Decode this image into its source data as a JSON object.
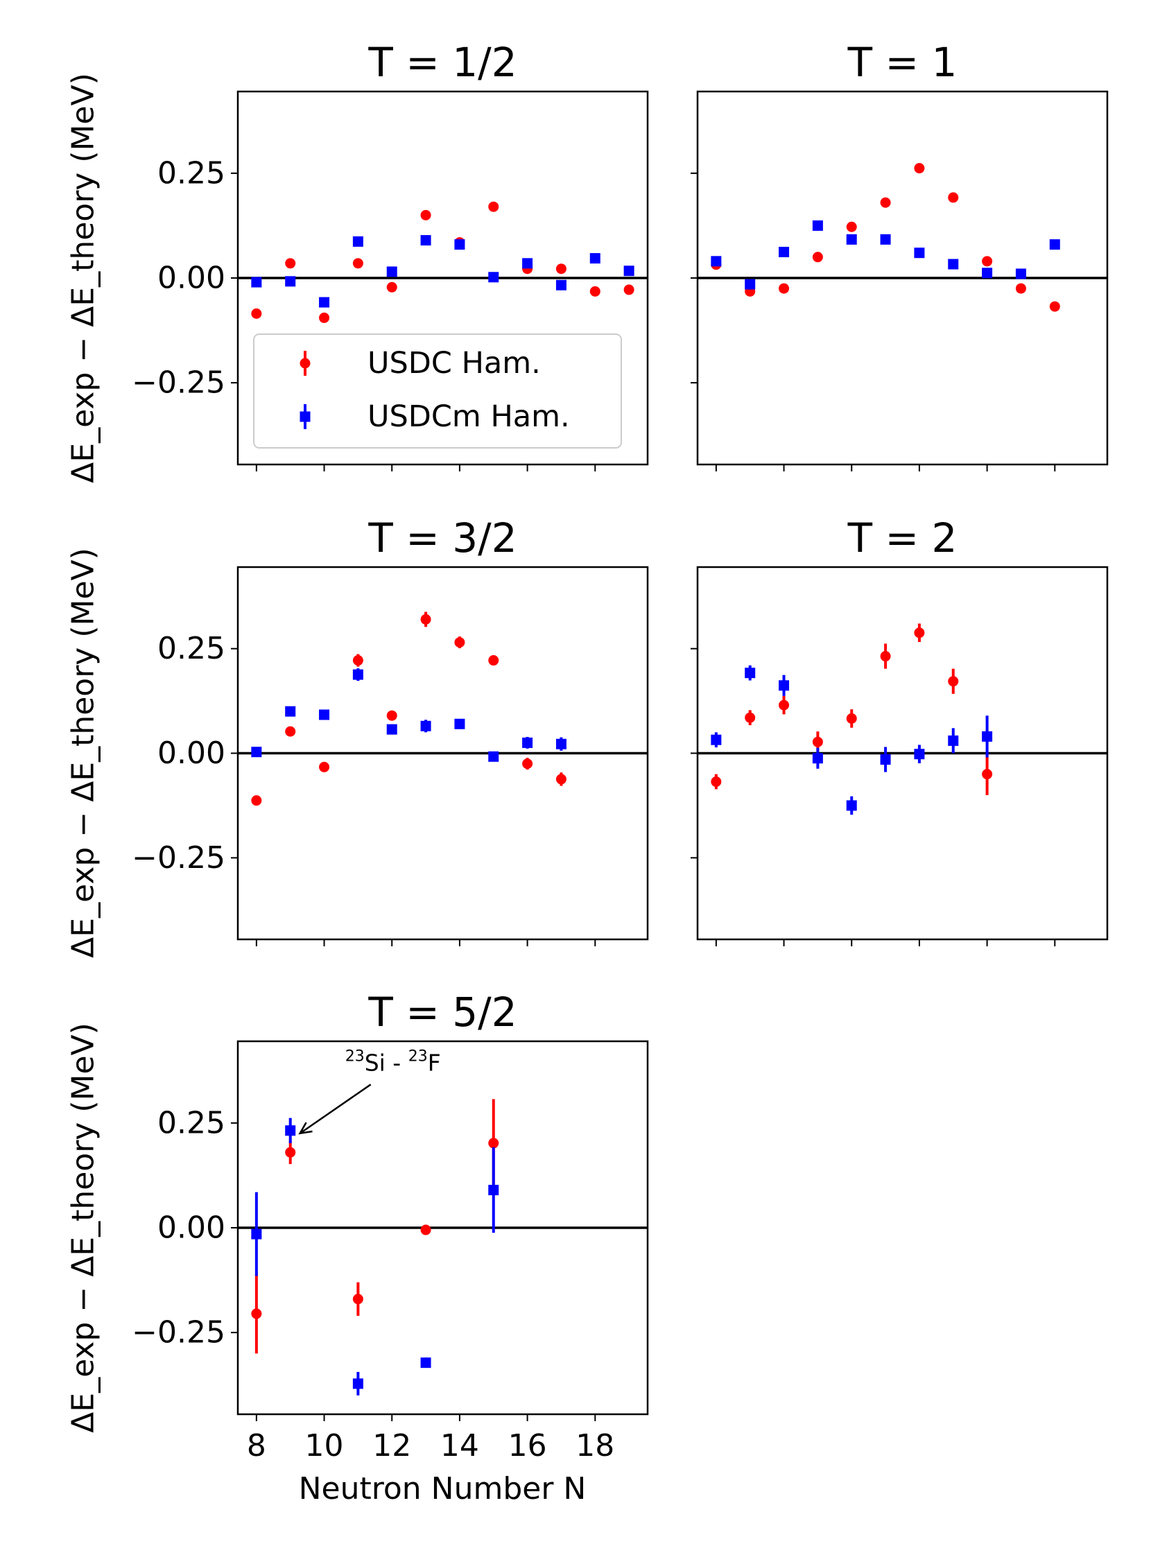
{
  "figure": {
    "ylabel": "ΔE_exp − ΔE_theory (MeV)",
    "xlabel": "Neutron Number N",
    "colors": {
      "usdc": "#ff0000",
      "usdcm": "#0000ff",
      "zero_line": "#000000"
    }
  },
  "chart_data": [
    {
      "type": "scatter",
      "title": "T = 1/2",
      "xlim": [
        7.45,
        19.55
      ],
      "ylim": [
        -0.445,
        0.445
      ],
      "yticks": [
        "0.25",
        "0.00",
        "−0.25"
      ],
      "xticks": [
        "8",
        "10",
        "12",
        "14",
        "16",
        "18"
      ],
      "show_x_ticklabels": false,
      "show_y_ticklabels": true,
      "legend": {
        "placement": "lower-left",
        "entries": [
          "USDC Ham.",
          "USDCm Ham."
        ]
      },
      "series": [
        {
          "name": "USDC Ham.",
          "marker": "circle",
          "color": "#ff0000",
          "x": [
            8,
            9,
            10,
            11,
            12,
            13,
            14,
            15,
            16,
            17,
            18,
            19
          ],
          "y": [
            -0.085,
            0.035,
            -0.095,
            0.035,
            -0.022,
            0.15,
            0.085,
            0.17,
            0.022,
            0.022,
            -0.032,
            -0.028
          ],
          "err": [
            0.004,
            0.004,
            0.004,
            0.004,
            0.004,
            0.004,
            0.004,
            0.004,
            0.004,
            0.004,
            0.004,
            0.004
          ]
        },
        {
          "name": "USDCm Ham.",
          "marker": "square",
          "color": "#0000ff",
          "x": [
            8,
            9,
            10,
            11,
            12,
            13,
            14,
            15,
            16,
            17,
            18,
            19
          ],
          "y": [
            -0.01,
            -0.008,
            -0.058,
            0.087,
            0.015,
            0.09,
            0.08,
            0.002,
            0.035,
            -0.017,
            0.047,
            0.017
          ],
          "err": [
            0.004,
            0.004,
            0.004,
            0.004,
            0.004,
            0.004,
            0.004,
            0.004,
            0.004,
            0.004,
            0.004,
            0.004
          ]
        }
      ]
    },
    {
      "type": "scatter",
      "title": "T = 1",
      "xlim": [
        7.45,
        19.55
      ],
      "ylim": [
        -0.445,
        0.445
      ],
      "yticks": [
        "0.25",
        "0.00",
        "−0.25"
      ],
      "xticks": [
        "8",
        "10",
        "12",
        "14",
        "16",
        "18"
      ],
      "show_x_ticklabels": false,
      "show_y_ticklabels": false,
      "series": [
        {
          "name": "USDC Ham.",
          "marker": "circle",
          "color": "#ff0000",
          "x": [
            8,
            9,
            10,
            11,
            12,
            13,
            14,
            15,
            16,
            17,
            18
          ],
          "y": [
            0.032,
            -0.032,
            -0.025,
            0.05,
            0.122,
            0.18,
            0.262,
            0.192,
            0.04,
            -0.025,
            -0.068
          ],
          "err": [
            0.004,
            0.004,
            0.004,
            0.004,
            0.004,
            0.004,
            0.004,
            0.004,
            0.004,
            0.004,
            0.004
          ]
        },
        {
          "name": "USDCm Ham.",
          "marker": "square",
          "color": "#0000ff",
          "x": [
            8,
            9,
            10,
            11,
            12,
            13,
            14,
            15,
            16,
            17,
            18
          ],
          "y": [
            0.04,
            -0.015,
            0.062,
            0.125,
            0.092,
            0.092,
            0.06,
            0.033,
            0.012,
            0.01,
            0.08
          ],
          "err": [
            0.004,
            0.004,
            0.004,
            0.004,
            0.004,
            0.004,
            0.004,
            0.004,
            0.004,
            0.004,
            0.004
          ]
        }
      ]
    },
    {
      "type": "scatter",
      "title": "T = 3/2",
      "xlim": [
        7.45,
        19.55
      ],
      "ylim": [
        -0.445,
        0.445
      ],
      "yticks": [
        "0.25",
        "0.00",
        "−0.25"
      ],
      "xticks": [
        "8",
        "10",
        "12",
        "14",
        "16",
        "18"
      ],
      "show_x_ticklabels": false,
      "show_y_ticklabels": true,
      "series": [
        {
          "name": "USDC Ham.",
          "marker": "circle",
          "color": "#ff0000",
          "x": [
            8,
            9,
            10,
            11,
            12,
            13,
            14,
            15,
            16,
            17
          ],
          "y": [
            -0.113,
            0.052,
            -0.033,
            0.222,
            0.09,
            0.32,
            0.265,
            0.222,
            -0.025,
            -0.062
          ],
          "err": [
            0.012,
            0.006,
            0.008,
            0.015,
            0.012,
            0.018,
            0.014,
            0.012,
            0.014,
            0.016
          ]
        },
        {
          "name": "USDCm Ham.",
          "marker": "square",
          "color": "#0000ff",
          "x": [
            8,
            9,
            10,
            11,
            12,
            13,
            14,
            15,
            16,
            17
          ],
          "y": [
            0.003,
            0.1,
            0.092,
            0.188,
            0.057,
            0.065,
            0.07,
            -0.008,
            0.025,
            0.022
          ],
          "err": [
            0.01,
            0.006,
            0.008,
            0.015,
            0.012,
            0.015,
            0.012,
            0.012,
            0.014,
            0.016
          ]
        }
      ]
    },
    {
      "type": "scatter",
      "title": "T = 2",
      "xlim": [
        7.45,
        19.55
      ],
      "ylim": [
        -0.445,
        0.445
      ],
      "yticks": [
        "0.25",
        "0.00",
        "−0.25"
      ],
      "xticks": [
        "8",
        "10",
        "12",
        "14",
        "16",
        "18"
      ],
      "show_x_ticklabels": false,
      "show_y_ticklabels": false,
      "series": [
        {
          "name": "USDC Ham.",
          "marker": "circle",
          "color": "#ff0000",
          "x": [
            8,
            9,
            10,
            11,
            12,
            13,
            14,
            15,
            16
          ],
          "y": [
            -0.068,
            0.085,
            0.115,
            0.027,
            0.083,
            0.232,
            0.288,
            0.172,
            -0.05
          ],
          "err": [
            0.018,
            0.018,
            0.022,
            0.025,
            0.022,
            0.03,
            0.022,
            0.03,
            0.05
          ]
        },
        {
          "name": "USDCm Ham.",
          "marker": "square",
          "color": "#0000ff",
          "x": [
            8,
            9,
            10,
            11,
            12,
            13,
            14,
            15,
            16
          ],
          "y": [
            0.032,
            0.192,
            0.162,
            -0.012,
            -0.125,
            -0.015,
            -0.002,
            0.03,
            0.04
          ],
          "err": [
            0.018,
            0.018,
            0.025,
            0.025,
            0.022,
            0.03,
            0.022,
            0.03,
            0.05
          ]
        }
      ]
    },
    {
      "type": "scatter",
      "title": "T = 5/2",
      "xlim": [
        7.45,
        19.55
      ],
      "ylim": [
        -0.445,
        0.445
      ],
      "yticks": [
        "0.25",
        "0.00",
        "−0.25"
      ],
      "xticks": [
        "8",
        "10",
        "12",
        "14",
        "16",
        "18"
      ],
      "show_x_ticklabels": true,
      "show_y_ticklabels": true,
      "annotation": {
        "text_parts": [
          "23",
          "Si - ",
          "23",
          "F"
        ],
        "x": 9,
        "y": 0.232
      },
      "series": [
        {
          "name": "USDC Ham.",
          "marker": "circle",
          "color": "#ff0000",
          "x": [
            8,
            9,
            11,
            13,
            15
          ],
          "y": [
            -0.205,
            0.18,
            -0.17,
            -0.005,
            0.202
          ],
          "err": [
            0.095,
            0.028,
            0.04,
            0.012,
            0.105
          ]
        },
        {
          "name": "USDCm Ham.",
          "marker": "square",
          "color": "#0000ff",
          "x": [
            8,
            9,
            11,
            13,
            15
          ],
          "y": [
            -0.015,
            0.232,
            -0.372,
            -0.322,
            0.09
          ],
          "err": [
            0.1,
            0.03,
            0.028,
            0.012,
            0.102
          ]
        }
      ]
    }
  ]
}
